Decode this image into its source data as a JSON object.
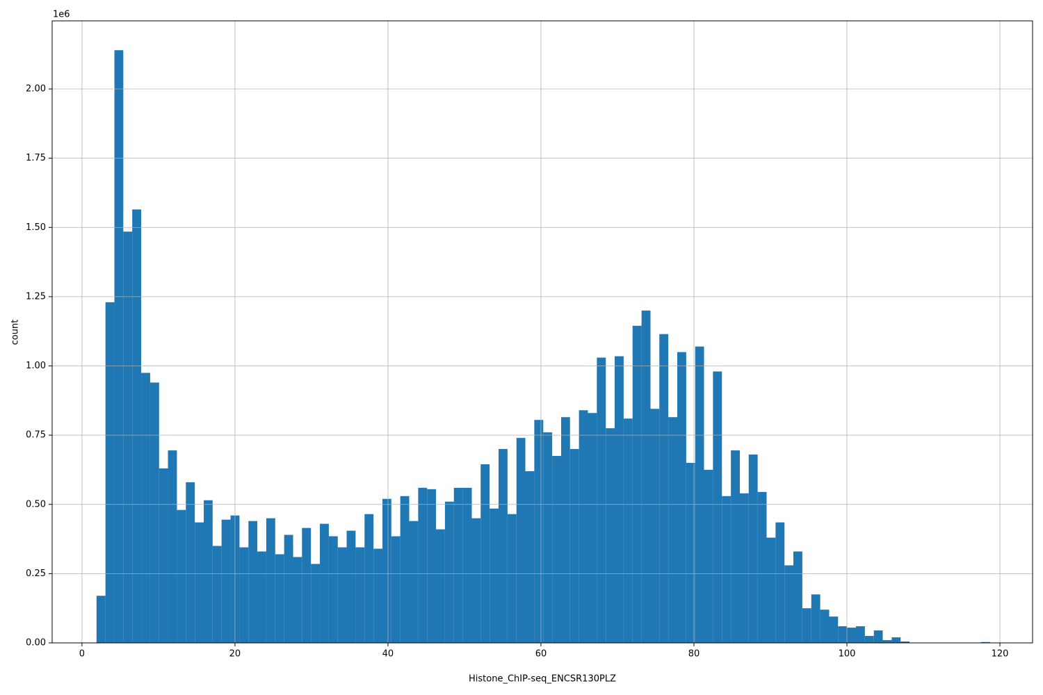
{
  "chart_data": {
    "type": "histogram",
    "xlabel": "Histone_ChIP-seq_ENCSR130PLZ",
    "ylabel": "count",
    "y_offset_label": "1e6",
    "color": "#1f77b4",
    "grid": true,
    "xlim": [
      -3.9,
      124.27
    ],
    "ylim": [
      0,
      2246000
    ],
    "xticks": [
      0,
      20,
      40,
      60,
      80,
      100,
      120
    ],
    "yticks": [
      {
        "value": 0,
        "label": "0.00"
      },
      {
        "value": 250000,
        "label": "0.25"
      },
      {
        "value": 500000,
        "label": "0.50"
      },
      {
        "value": 750000,
        "label": "0.75"
      },
      {
        "value": 1000000,
        "label": "1.00"
      },
      {
        "value": 1250000,
        "label": "1.25"
      },
      {
        "value": 1500000,
        "label": "1.50"
      },
      {
        "value": 1750000,
        "label": "1.75"
      },
      {
        "value": 2000000,
        "label": "2.00"
      }
    ],
    "bins": [
      1.9,
      3.07,
      4.24,
      5.4,
      6.57,
      7.74,
      8.91,
      10.08,
      11.24,
      12.41,
      13.58,
      14.75,
      15.92,
      17.08,
      18.25,
      19.42,
      20.59,
      21.76,
      22.92,
      24.09,
      25.26,
      26.43,
      27.6,
      28.76,
      29.93,
      31.1,
      32.27,
      33.44,
      34.6,
      35.77,
      36.94,
      38.11,
      39.28,
      40.44,
      41.61,
      42.78,
      43.95,
      45.12,
      46.28,
      47.45,
      48.62,
      49.79,
      50.96,
      52.12,
      53.29,
      54.46,
      55.63,
      56.8,
      57.96,
      59.13,
      60.3,
      61.47,
      62.64,
      63.8,
      64.97,
      66.14,
      67.31,
      68.48,
      69.64,
      70.81,
      71.98,
      73.15,
      74.32,
      75.48,
      76.65,
      77.82,
      78.99,
      80.16,
      81.32,
      82.49,
      83.66,
      84.83,
      86.0,
      87.16,
      88.33,
      89.5,
      90.67,
      91.84,
      93.0,
      94.17,
      95.34,
      96.51,
      97.68,
      98.84,
      100.01,
      101.18,
      102.35,
      103.52,
      104.68,
      105.85,
      107.02,
      108.19,
      109.36,
      110.52,
      111.69,
      112.86,
      114.03,
      115.2,
      116.36,
      117.53,
      118.7
    ],
    "values": [
      170000,
      1230000,
      2140000,
      1485000,
      1565000,
      975000,
      940000,
      630000,
      695000,
      480000,
      580000,
      435000,
      515000,
      350000,
      445000,
      460000,
      345000,
      440000,
      330000,
      450000,
      320000,
      390000,
      310000,
      415000,
      285000,
      430000,
      385000,
      345000,
      405000,
      345000,
      465000,
      340000,
      520000,
      385000,
      530000,
      440000,
      560000,
      555000,
      410000,
      510000,
      560000,
      560000,
      450000,
      645000,
      485000,
      700000,
      465000,
      740000,
      620000,
      805000,
      760000,
      675000,
      815000,
      700000,
      840000,
      830000,
      1030000,
      775000,
      1035000,
      810000,
      1145000,
      1200000,
      845000,
      1115000,
      815000,
      1050000,
      650000,
      1070000,
      625000,
      980000,
      530000,
      695000,
      540000,
      680000,
      545000,
      380000,
      435000,
      280000,
      330000,
      125000,
      175000,
      120000,
      95000,
      60000,
      55000,
      60000,
      25000,
      45000,
      10000,
      20000,
      5000,
      0,
      0,
      0,
      0,
      0,
      0,
      0,
      0,
      3000
    ]
  }
}
